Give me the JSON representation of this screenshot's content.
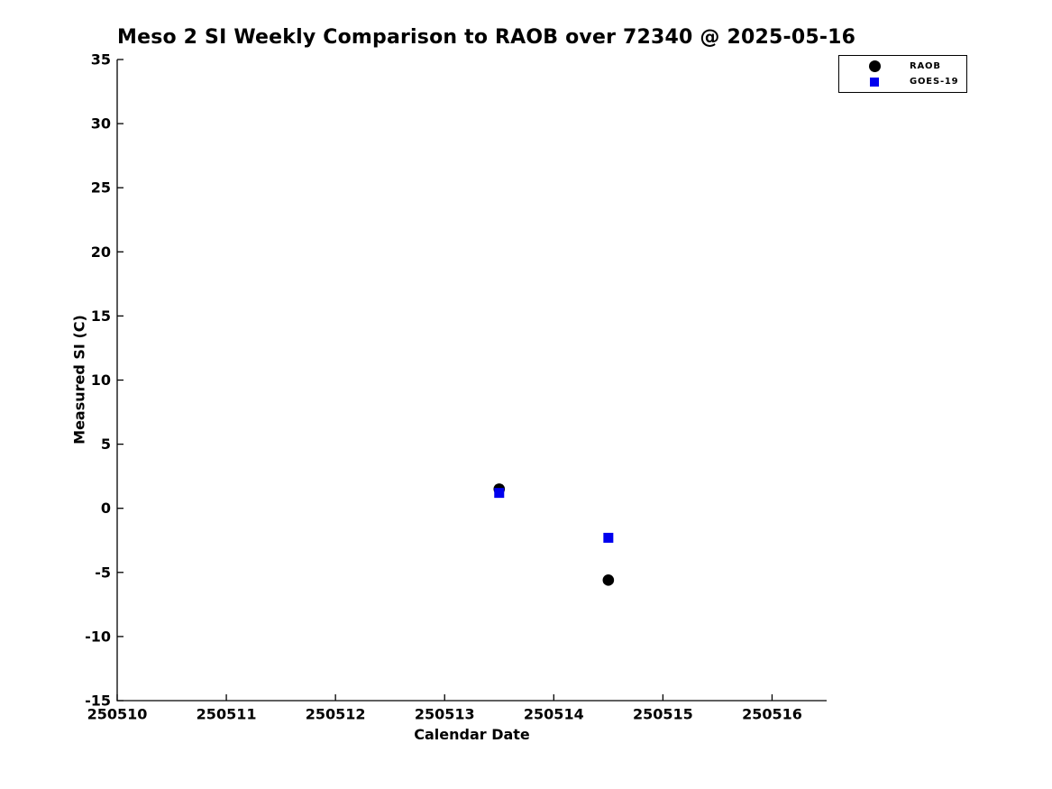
{
  "chart_data": {
    "type": "scatter",
    "title": "Meso 2 SI Weekly Comparison to RAOB over 72340 @ 2025-05-16",
    "xlabel": "Calendar Date",
    "ylabel": "Measured SI (C)",
    "xlim": [
      250510,
      250516.5
    ],
    "ylim": [
      -15,
      35
    ],
    "xticks": [
      250510,
      250511,
      250512,
      250513,
      250514,
      250515,
      250516
    ],
    "yticks": [
      -15,
      -10,
      -5,
      0,
      5,
      10,
      15,
      20,
      25,
      30,
      35
    ],
    "grid": false,
    "legend_position": "outside-top-right",
    "axis_color": "#000000",
    "background_color": "#ffffff",
    "series": [
      {
        "name": "RAOB",
        "marker": "circle",
        "color": "#000000",
        "points": [
          {
            "x": 250513.5,
            "y": 1.5
          },
          {
            "x": 250514.5,
            "y": -5.6
          }
        ]
      },
      {
        "name": "GOES-19",
        "marker": "square",
        "color": "#0000ee",
        "points": [
          {
            "x": 250513.5,
            "y": 1.2
          },
          {
            "x": 250514.5,
            "y": -2.3
          }
        ]
      }
    ]
  }
}
